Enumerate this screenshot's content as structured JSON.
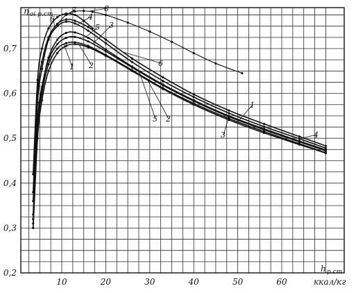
{
  "chart_data": {
    "type": "line",
    "title": "",
    "ylabel": {
      "main": "η",
      "sub": "oi р.ст"
    },
    "xlabel": {
      "main": "h",
      "sub": "р.ст",
      "unit": "ккал/кг"
    },
    "xlim": [
      0,
      72
    ],
    "ylim": [
      0.2,
      0.8
    ],
    "x_ticks": [
      10,
      20,
      30,
      40,
      50,
      60
    ],
    "x_tick_labels": [
      "10",
      "20",
      "30",
      "40",
      "50",
      "60"
    ],
    "y_ticks": [
      0.2,
      0.3,
      0.4,
      0.5,
      0.6,
      0.7
    ],
    "y_tick_labels": [
      "0,2",
      "0,3",
      "0,4",
      "0,5",
      "0,6",
      "0,7"
    ],
    "grid": true,
    "series": [
      {
        "name": "1",
        "x": [
          3.5,
          4.5,
          5.5,
          7,
          9,
          11,
          13,
          16,
          20,
          26,
          33,
          40,
          48,
          56,
          64,
          70
        ],
        "y": [
          0.31,
          0.52,
          0.6,
          0.665,
          0.7,
          0.712,
          0.714,
          0.706,
          0.686,
          0.652,
          0.612,
          0.578,
          0.544,
          0.515,
          0.488,
          0.468
        ]
      },
      {
        "name": "2",
        "x": [
          3.5,
          4.5,
          5.5,
          7,
          9,
          11,
          13,
          16,
          20,
          26,
          33,
          40,
          48,
          56,
          64,
          70
        ],
        "y": [
          0.3,
          0.5,
          0.585,
          0.65,
          0.69,
          0.706,
          0.71,
          0.703,
          0.684,
          0.65,
          0.61,
          0.575,
          0.541,
          0.512,
          0.486,
          0.467
        ]
      },
      {
        "name": "3",
        "x": [
          3.5,
          4.5,
          5.5,
          7,
          9,
          11,
          13,
          16,
          20,
          26,
          33,
          40,
          48,
          56,
          64,
          70
        ],
        "y": [
          0.33,
          0.54,
          0.615,
          0.675,
          0.71,
          0.724,
          0.726,
          0.716,
          0.694,
          0.658,
          0.618,
          0.583,
          0.548,
          0.519,
          0.492,
          0.472
        ]
      },
      {
        "name": "4",
        "x": [
          3.5,
          4.5,
          5.5,
          7,
          9,
          11,
          13,
          16,
          20,
          26,
          33,
          40,
          48,
          56,
          64,
          70
        ],
        "y": [
          0.36,
          0.58,
          0.655,
          0.72,
          0.75,
          0.76,
          0.756,
          0.74,
          0.712,
          0.67,
          0.628,
          0.592,
          0.556,
          0.526,
          0.499,
          0.478
        ]
      },
      {
        "name": "5",
        "x": [
          3.5,
          4.5,
          5.5,
          7,
          9,
          11,
          13,
          16,
          20,
          26,
          33,
          40,
          48,
          56,
          64,
          70
        ],
        "y": [
          0.32,
          0.53,
          0.61,
          0.68,
          0.72,
          0.735,
          0.736,
          0.724,
          0.698,
          0.66,
          0.62,
          0.585,
          0.55,
          0.521,
          0.494,
          0.474
        ]
      },
      {
        "name": "6",
        "x": [
          3.5,
          4.5,
          5.5,
          7,
          9,
          11,
          13,
          16,
          20,
          26,
          33,
          40,
          48,
          56,
          64,
          70
        ],
        "y": [
          0.38,
          0.6,
          0.67,
          0.725,
          0.755,
          0.765,
          0.762,
          0.748,
          0.72,
          0.678,
          0.636,
          0.598,
          0.562,
          0.532,
          0.504,
          0.483
        ]
      },
      {
        "name": "7",
        "x": [
          3.5,
          4.5,
          5.5,
          7,
          9,
          11,
          13,
          15,
          17
        ],
        "y": [
          0.42,
          0.63,
          0.7,
          0.745,
          0.77,
          0.778,
          0.775,
          0.762,
          0.745
        ]
      },
      {
        "name": "8",
        "x": [
          9,
          11,
          13,
          15,
          17,
          20,
          25,
          30,
          35,
          40,
          45,
          51
        ],
        "y": [
          0.755,
          0.775,
          0.783,
          0.784,
          0.782,
          0.775,
          0.758,
          0.738,
          0.715,
          0.69,
          0.667,
          0.645
        ]
      }
    ]
  }
}
